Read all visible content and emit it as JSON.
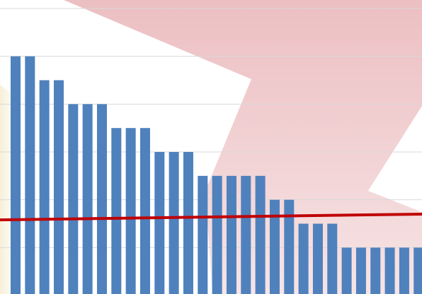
{
  "chart_data": {
    "type": "bar",
    "values": [
      5,
      5,
      4.5,
      4.5,
      4,
      4,
      4,
      3.5,
      3.5,
      3.5,
      3,
      3,
      3,
      2.5,
      2.5,
      2.5,
      2.5,
      2.5,
      2,
      2,
      1.5,
      1.5,
      1.5,
      1,
      1,
      1,
      1,
      1,
      1
    ],
    "color": "#4f81bd",
    "ylim": [
      0,
      6
    ],
    "yticks": [
      1,
      2,
      3,
      4,
      5,
      6
    ],
    "grid": true,
    "trend": {
      "color": "#c00000",
      "values": [
        1.58,
        1.7
      ]
    }
  }
}
